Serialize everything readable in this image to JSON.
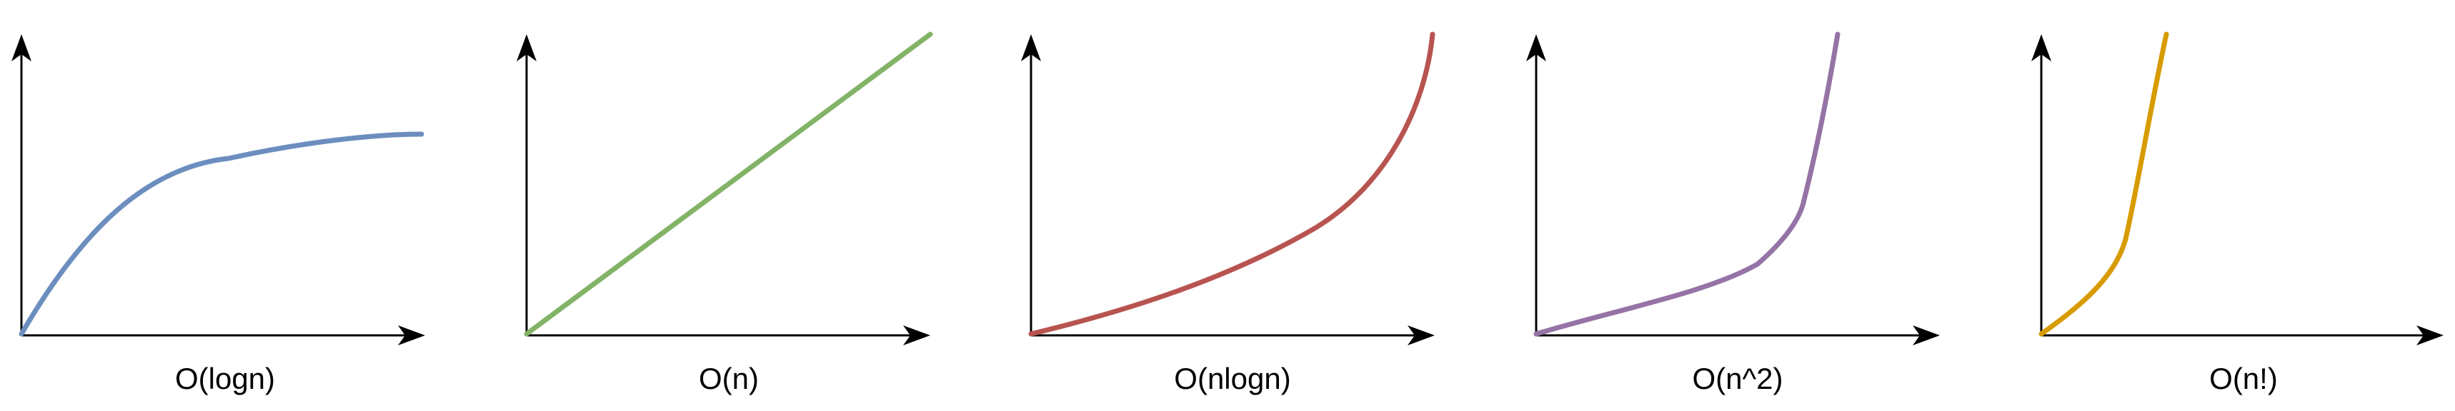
{
  "panels": [
    {
      "label": "O(logn)",
      "color": "#6C8EBF"
    },
    {
      "label": "O(n)",
      "color": "#82B366"
    },
    {
      "label": "O(nlogn)",
      "color": "#B85450"
    },
    {
      "label": "O(n^2)",
      "color": "#9673A6"
    },
    {
      "label": "O(n!)",
      "color": "#D79B00"
    }
  ]
}
